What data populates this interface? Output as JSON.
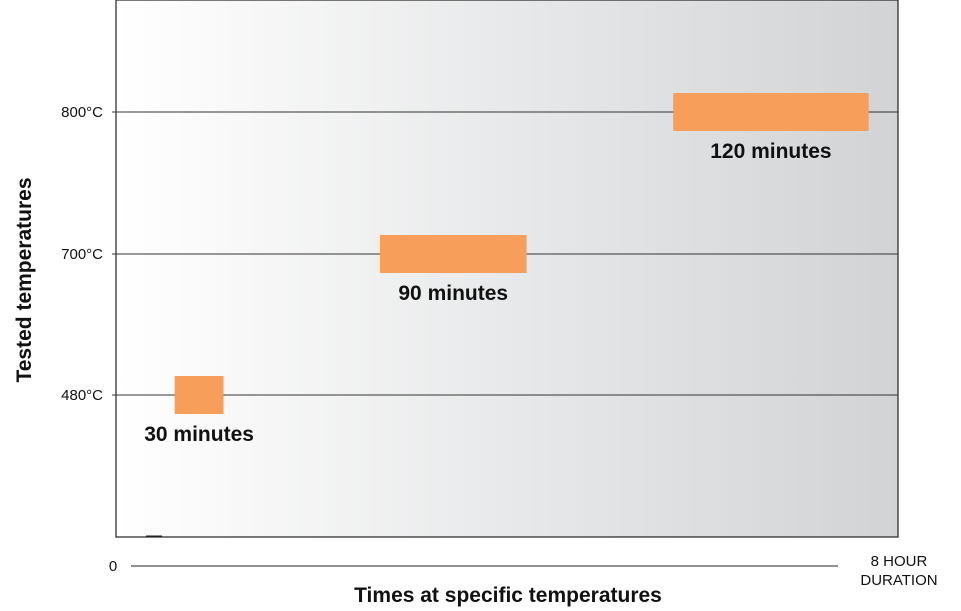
{
  "chart_data": {
    "type": "bar",
    "orientation": "horizontal-timeline",
    "ylabel": "Tested temperatures",
    "xlabel": "Times at specific temperatures",
    "x_axis": {
      "start_label": "0",
      "end_label_lines": [
        "8 HOUR",
        "DURATION"
      ],
      "range_hours": [
        0,
        8
      ]
    },
    "y_ticks": [
      "480°C",
      "700°C",
      "800°C"
    ],
    "grid": true,
    "background": "gradient white-to-grey",
    "bar_color": "#F79E5B",
    "series": [
      {
        "temperature": "480°C",
        "label": "30 minutes",
        "start_hour": 0.6,
        "duration_minutes": 30
      },
      {
        "temperature": "700°C",
        "label": "90 minutes",
        "start_hour": 2.7,
        "duration_minutes": 90
      },
      {
        "temperature": "800°C",
        "label": "120 minutes",
        "start_hour": 5.7,
        "duration_minutes": 120
      }
    ]
  }
}
